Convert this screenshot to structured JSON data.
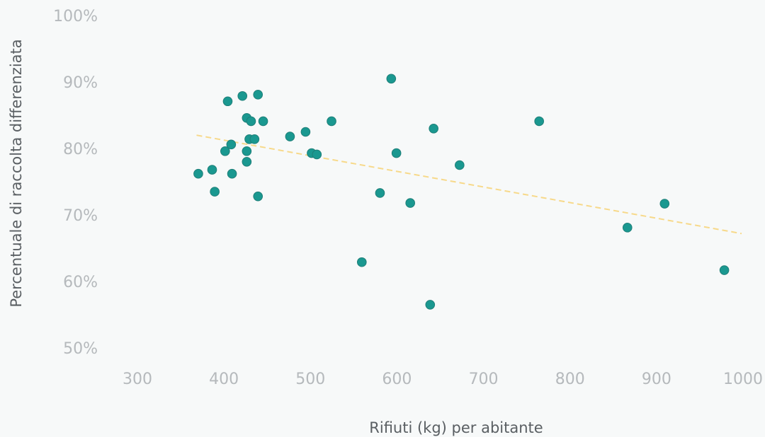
{
  "chart_data": {
    "type": "scatter",
    "xlabel": "Rifiuti (kg) per abitante",
    "ylabel": "Percentuale di raccolta differenziata",
    "xlim": [
      300,
      1000
    ],
    "ylim": [
      50,
      100
    ],
    "x_ticks": [
      300,
      400,
      500,
      600,
      700,
      800,
      900,
      1000
    ],
    "y_ticks": [
      50,
      60,
      70,
      80,
      90,
      100
    ],
    "x_tick_labels": [
      "300",
      "400",
      "500",
      "600",
      "700",
      "800",
      "900",
      "1000"
    ],
    "y_tick_labels": [
      "50%",
      "60%",
      "70%",
      "80%",
      "90%",
      "100%"
    ],
    "grid": false,
    "point_color": "#1a9890",
    "trend_color": "#f7d98a",
    "points": [
      {
        "x": 372,
        "y": 76.2
      },
      {
        "x": 388,
        "y": 76.8
      },
      {
        "x": 391,
        "y": 73.5
      },
      {
        "x": 403,
        "y": 79.6
      },
      {
        "x": 406,
        "y": 87.1
      },
      {
        "x": 410,
        "y": 80.6
      },
      {
        "x": 411,
        "y": 76.2
      },
      {
        "x": 423,
        "y": 87.9
      },
      {
        "x": 428,
        "y": 84.6
      },
      {
        "x": 428,
        "y": 79.6
      },
      {
        "x": 428,
        "y": 78.0
      },
      {
        "x": 431,
        "y": 81.4
      },
      {
        "x": 433,
        "y": 84.1
      },
      {
        "x": 437,
        "y": 81.4
      },
      {
        "x": 441,
        "y": 88.1
      },
      {
        "x": 441,
        "y": 72.8
      },
      {
        "x": 447,
        "y": 84.1
      },
      {
        "x": 478,
        "y": 81.8
      },
      {
        "x": 496,
        "y": 82.5
      },
      {
        "x": 503,
        "y": 79.3
      },
      {
        "x": 509,
        "y": 79.1
      },
      {
        "x": 526,
        "y": 84.1
      },
      {
        "x": 561,
        "y": 62.9
      },
      {
        "x": 582,
        "y": 73.3
      },
      {
        "x": 595,
        "y": 90.5
      },
      {
        "x": 601,
        "y": 79.3
      },
      {
        "x": 617,
        "y": 71.8
      },
      {
        "x": 640,
        "y": 56.5
      },
      {
        "x": 644,
        "y": 83.0
      },
      {
        "x": 674,
        "y": 77.5
      },
      {
        "x": 766,
        "y": 84.1
      },
      {
        "x": 868,
        "y": 68.1
      },
      {
        "x": 911,
        "y": 71.7
      },
      {
        "x": 980,
        "y": 61.7
      }
    ],
    "trend_line": {
      "x": [
        370,
        1000
      ],
      "y": [
        82.0,
        67.2
      ]
    }
  }
}
